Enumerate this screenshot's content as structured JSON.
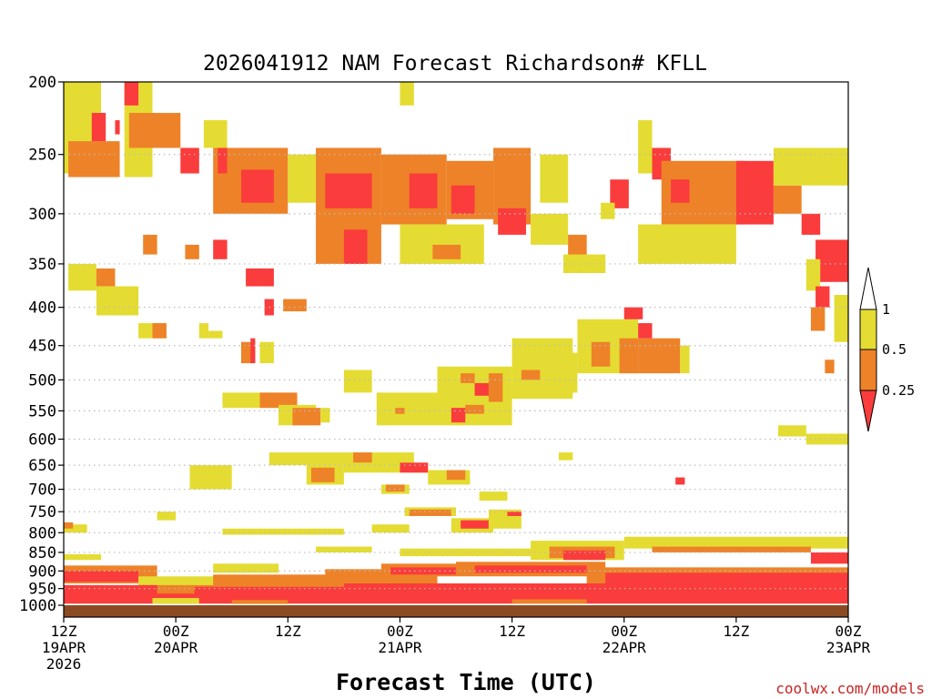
{
  "chart_data": {
    "type": "heatmap",
    "title": "2026041912 NAM Forecast Richardson# KFLL",
    "xlabel": "Forecast Time (UTC)",
    "ylabel": "",
    "credit": "coolwx.com/models",
    "x_range_hours": [
      0,
      84
    ],
    "y_range_hpa": [
      1000,
      200
    ],
    "y_ticks": [
      "200",
      "250",
      "300",
      "350",
      "400",
      "450",
      "500",
      "550",
      "600",
      "650",
      "700",
      "750",
      "800",
      "850",
      "900",
      "950",
      "1000"
    ],
    "x_ticks": [
      {
        "hour": 0,
        "line1": "12Z",
        "line2": "19APR",
        "line3": "2026"
      },
      {
        "hour": 12,
        "line1": "00Z",
        "line2": "20APR",
        "line3": ""
      },
      {
        "hour": 24,
        "line1": "12Z",
        "line2": "",
        "line3": ""
      },
      {
        "hour": 36,
        "line1": "00Z",
        "line2": "21APR",
        "line3": ""
      },
      {
        "hour": 48,
        "line1": "12Z",
        "line2": "",
        "line3": ""
      },
      {
        "hour": 60,
        "line1": "00Z",
        "line2": "22APR",
        "line3": ""
      },
      {
        "hour": 72,
        "line1": "12Z",
        "line2": "",
        "line3": ""
      },
      {
        "hour": 84,
        "line1": "00Z",
        "line2": "23APR",
        "line3": ""
      }
    ],
    "legend": {
      "placement": "right",
      "labels": [
        "1",
        "0.5",
        "0.25"
      ],
      "colors": {
        "above_1": "#ffffff",
        "r_0_5_to_1": "#e4dc32",
        "r_0_25_to_0_5": "#ee8228",
        "below_0_25": "#fa3c3c"
      }
    },
    "colors": {
      "yellow": "#e4dc32",
      "orange": "#ee8228",
      "red": "#fa3c3c",
      "ground": "#8c4a22",
      "grid": "#bbbbbb",
      "credit": "#cc2222"
    },
    "ground_level_hpa": 1000,
    "regions": [
      {
        "h0": 0.0,
        "h1": 4.0,
        "p0": 200,
        "p1": 265,
        "c": "yellow"
      },
      {
        "h0": 0.5,
        "h1": 6.0,
        "p0": 240,
        "p1": 268,
        "c": "orange"
      },
      {
        "h0": 3.0,
        "h1": 4.5,
        "p0": 220,
        "p1": 240,
        "c": "red"
      },
      {
        "h0": 6.5,
        "h1": 9.5,
        "p0": 200,
        "p1": 268,
        "c": "yellow"
      },
      {
        "h0": 7.0,
        "h1": 12.5,
        "p0": 220,
        "p1": 245,
        "c": "orange"
      },
      {
        "h0": 6.5,
        "h1": 8.0,
        "p0": 200,
        "p1": 215,
        "c": "red"
      },
      {
        "h0": 5.5,
        "h1": 6.0,
        "p0": 225,
        "p1": 235,
        "c": "red"
      },
      {
        "h0": 12.5,
        "h1": 14.5,
        "p0": 245,
        "p1": 265,
        "c": "red"
      },
      {
        "h0": 15.0,
        "h1": 17.5,
        "p0": 225,
        "p1": 245,
        "c": "yellow"
      },
      {
        "h0": 16.0,
        "h1": 24.0,
        "p0": 245,
        "p1": 300,
        "c": "orange"
      },
      {
        "h0": 19.0,
        "h1": 22.5,
        "p0": 262,
        "p1": 290,
        "c": "red"
      },
      {
        "h0": 16.5,
        "h1": 17.5,
        "p0": 245,
        "p1": 265,
        "c": "red"
      },
      {
        "h0": 24.0,
        "h1": 27.0,
        "p0": 250,
        "p1": 290,
        "c": "yellow"
      },
      {
        "h0": 27.0,
        "h1": 34.0,
        "p0": 245,
        "p1": 350,
        "c": "orange"
      },
      {
        "h0": 28.0,
        "h1": 33.0,
        "p0": 265,
        "p1": 295,
        "c": "red"
      },
      {
        "h0": 30.0,
        "h1": 32.5,
        "p0": 315,
        "p1": 350,
        "c": "red"
      },
      {
        "h0": 34.0,
        "h1": 41.0,
        "p0": 250,
        "p1": 310,
        "c": "orange"
      },
      {
        "h0": 37.0,
        "h1": 40.0,
        "p0": 265,
        "p1": 295,
        "c": "red"
      },
      {
        "h0": 41.0,
        "h1": 46.0,
        "p0": 255,
        "p1": 305,
        "c": "orange"
      },
      {
        "h0": 41.5,
        "h1": 44.0,
        "p0": 275,
        "p1": 300,
        "c": "red"
      },
      {
        "h0": 36.0,
        "h1": 45.0,
        "p0": 310,
        "p1": 350,
        "c": "yellow"
      },
      {
        "h0": 46.0,
        "h1": 50.0,
        "p0": 245,
        "p1": 310,
        "c": "orange"
      },
      {
        "h0": 46.5,
        "h1": 49.5,
        "p0": 295,
        "p1": 320,
        "c": "red"
      },
      {
        "h0": 50.0,
        "h1": 54.0,
        "p0": 300,
        "p1": 330,
        "c": "yellow"
      },
      {
        "h0": 51.0,
        "h1": 54.0,
        "p0": 250,
        "p1": 290,
        "c": "yellow"
      },
      {
        "h0": 39.5,
        "h1": 42.5,
        "p0": 330,
        "p1": 345,
        "c": "orange"
      },
      {
        "h0": 54.0,
        "h1": 56.0,
        "p0": 320,
        "p1": 345,
        "c": "orange"
      },
      {
        "h0": 53.5,
        "h1": 58.0,
        "p0": 340,
        "p1": 360,
        "c": "yellow"
      },
      {
        "h0": 36.0,
        "h1": 37.5,
        "p0": 200,
        "p1": 215,
        "c": "yellow"
      },
      {
        "h0": 61.5,
        "h1": 63.0,
        "p0": 225,
        "p1": 265,
        "c": "yellow"
      },
      {
        "h0": 63.0,
        "h1": 65.0,
        "p0": 245,
        "p1": 270,
        "c": "red"
      },
      {
        "h0": 64.0,
        "h1": 73.0,
        "p0": 255,
        "p1": 310,
        "c": "orange"
      },
      {
        "h0": 65.0,
        "h1": 67.0,
        "p0": 270,
        "p1": 290,
        "c": "red"
      },
      {
        "h0": 72.0,
        "h1": 76.0,
        "p0": 255,
        "p1": 310,
        "c": "red"
      },
      {
        "h0": 76.0,
        "h1": 79.0,
        "p0": 275,
        "p1": 300,
        "c": "orange"
      },
      {
        "h0": 79.0,
        "h1": 81.0,
        "p0": 300,
        "p1": 320,
        "c": "red"
      },
      {
        "h0": 76.0,
        "h1": 84.0,
        "p0": 245,
        "p1": 275,
        "c": "yellow"
      },
      {
        "h0": 61.5,
        "h1": 72.0,
        "p0": 310,
        "p1": 350,
        "c": "yellow"
      },
      {
        "h0": 80.5,
        "h1": 84.0,
        "p0": 325,
        "p1": 370,
        "c": "red"
      },
      {
        "h0": 79.5,
        "h1": 81.0,
        "p0": 345,
        "p1": 380,
        "c": "yellow"
      },
      {
        "h0": 58.5,
        "h1": 60.5,
        "p0": 270,
        "p1": 295,
        "c": "red"
      },
      {
        "h0": 57.5,
        "h1": 59.0,
        "p0": 290,
        "p1": 305,
        "c": "yellow"
      },
      {
        "h0": 0.5,
        "h1": 3.5,
        "p0": 350,
        "p1": 380,
        "c": "yellow"
      },
      {
        "h0": 3.5,
        "h1": 5.5,
        "p0": 355,
        "p1": 375,
        "c": "orange"
      },
      {
        "h0": 3.5,
        "h1": 8.0,
        "p0": 375,
        "p1": 410,
        "c": "yellow"
      },
      {
        "h0": 8.0,
        "h1": 11.0,
        "p0": 420,
        "p1": 440,
        "c": "yellow"
      },
      {
        "h0": 9.5,
        "h1": 11.0,
        "p0": 420,
        "p1": 440,
        "c": "orange"
      },
      {
        "h0": 8.5,
        "h1": 10.0,
        "p0": 320,
        "p1": 340,
        "c": "orange"
      },
      {
        "h0": 13.0,
        "h1": 14.5,
        "p0": 330,
        "p1": 345,
        "c": "orange"
      },
      {
        "h0": 16.0,
        "h1": 17.5,
        "p0": 325,
        "p1": 345,
        "c": "red"
      },
      {
        "h0": 19.5,
        "h1": 22.5,
        "p0": 355,
        "p1": 375,
        "c": "red"
      },
      {
        "h0": 21.5,
        "h1": 22.5,
        "p0": 390,
        "p1": 410,
        "c": "red"
      },
      {
        "h0": 23.5,
        "h1": 26.0,
        "p0": 390,
        "p1": 405,
        "c": "orange"
      },
      {
        "h0": 14.5,
        "h1": 15.5,
        "p0": 420,
        "p1": 440,
        "c": "yellow"
      },
      {
        "h0": 19.0,
        "h1": 20.5,
        "p0": 445,
        "p1": 475,
        "c": "orange"
      },
      {
        "h0": 20.0,
        "h1": 20.5,
        "p0": 440,
        "p1": 475,
        "c": "red"
      },
      {
        "h0": 21.0,
        "h1": 22.5,
        "p0": 445,
        "p1": 475,
        "c": "yellow"
      },
      {
        "h0": 17.0,
        "h1": 23.0,
        "p0": 520,
        "p1": 545,
        "c": "yellow"
      },
      {
        "h0": 21.0,
        "h1": 25.0,
        "p0": 520,
        "p1": 545,
        "c": "orange"
      },
      {
        "h0": 23.0,
        "h1": 27.0,
        "p0": 540,
        "p1": 575,
        "c": "yellow"
      },
      {
        "h0": 24.5,
        "h1": 27.5,
        "p0": 545,
        "p1": 575,
        "c": "orange"
      },
      {
        "h0": 27.5,
        "h1": 28.5,
        "p0": 545,
        "p1": 570,
        "c": "yellow"
      },
      {
        "h0": 30.0,
        "h1": 33.0,
        "p0": 485,
        "p1": 520,
        "c": "yellow"
      },
      {
        "h0": 33.5,
        "h1": 40.0,
        "p0": 520,
        "p1": 575,
        "c": "yellow"
      },
      {
        "h0": 35.5,
        "h1": 36.5,
        "p0": 545,
        "p1": 555,
        "c": "orange"
      },
      {
        "h0": 40.0,
        "h1": 48.0,
        "p0": 480,
        "p1": 575,
        "c": "yellow"
      },
      {
        "h0": 42.5,
        "h1": 44.0,
        "p0": 490,
        "p1": 505,
        "c": "orange"
      },
      {
        "h0": 44.0,
        "h1": 45.5,
        "p0": 505,
        "p1": 525,
        "c": "red"
      },
      {
        "h0": 45.5,
        "h1": 47.0,
        "p0": 490,
        "p1": 535,
        "c": "orange"
      },
      {
        "h0": 43.0,
        "h1": 45.0,
        "p0": 540,
        "p1": 555,
        "c": "orange"
      },
      {
        "h0": 41.5,
        "h1": 43.0,
        "p0": 545,
        "p1": 570,
        "c": "red"
      },
      {
        "h0": 48.0,
        "h1": 54.5,
        "p0": 440,
        "p1": 530,
        "c": "yellow"
      },
      {
        "h0": 49.0,
        "h1": 51.0,
        "p0": 485,
        "p1": 500,
        "c": "orange"
      },
      {
        "h0": 54.0,
        "h1": 55.0,
        "p0": 460,
        "p1": 520,
        "c": "yellow"
      },
      {
        "h0": 55.0,
        "h1": 61.5,
        "p0": 415,
        "p1": 490,
        "c": "yellow"
      },
      {
        "h0": 56.5,
        "h1": 58.5,
        "p0": 445,
        "p1": 480,
        "c": "orange"
      },
      {
        "h0": 59.5,
        "h1": 61.5,
        "p0": 440,
        "p1": 490,
        "c": "orange"
      },
      {
        "h0": 60.0,
        "h1": 62.0,
        "p0": 400,
        "p1": 415,
        "c": "red"
      },
      {
        "h0": 61.5,
        "h1": 66.0,
        "p0": 440,
        "p1": 490,
        "c": "orange"
      },
      {
        "h0": 66.0,
        "h1": 67.0,
        "p0": 450,
        "p1": 490,
        "c": "yellow"
      },
      {
        "h0": 61.5,
        "h1": 63.0,
        "p0": 420,
        "p1": 440,
        "c": "red"
      },
      {
        "h0": 15.5,
        "h1": 17.0,
        "p0": 430,
        "p1": 440,
        "c": "yellow"
      },
      {
        "h0": 80.0,
        "h1": 81.5,
        "p0": 400,
        "p1": 430,
        "c": "orange"
      },
      {
        "h0": 80.5,
        "h1": 82.0,
        "p0": 375,
        "p1": 400,
        "c": "red"
      },
      {
        "h0": 82.5,
        "h1": 84.0,
        "p0": 385,
        "p1": 445,
        "c": "yellow"
      },
      {
        "h0": 81.5,
        "h1": 82.5,
        "p0": 470,
        "p1": 490,
        "c": "orange"
      },
      {
        "h0": 76.5,
        "h1": 79.5,
        "p0": 575,
        "p1": 595,
        "c": "yellow"
      },
      {
        "h0": 79.5,
        "h1": 84.0,
        "p0": 590,
        "p1": 610,
        "c": "yellow"
      },
      {
        "h0": 13.5,
        "h1": 18.0,
        "p0": 650,
        "p1": 700,
        "c": "yellow"
      },
      {
        "h0": 22.0,
        "h1": 37.5,
        "p0": 625,
        "p1": 650,
        "c": "yellow"
      },
      {
        "h0": 31.0,
        "h1": 33.0,
        "p0": 625,
        "p1": 645,
        "c": "orange"
      },
      {
        "h0": 26.0,
        "h1": 30.0,
        "p0": 650,
        "p1": 690,
        "c": "yellow"
      },
      {
        "h0": 26.5,
        "h1": 29.0,
        "p0": 655,
        "p1": 685,
        "c": "orange"
      },
      {
        "h0": 30.0,
        "h1": 39.0,
        "p0": 645,
        "p1": 665,
        "c": "yellow"
      },
      {
        "h0": 36.0,
        "h1": 39.0,
        "p0": 645,
        "p1": 665,
        "c": "red"
      },
      {
        "h0": 39.0,
        "h1": 43.5,
        "p0": 660,
        "p1": 690,
        "c": "yellow"
      },
      {
        "h0": 41.0,
        "h1": 43.0,
        "p0": 660,
        "p1": 680,
        "c": "orange"
      },
      {
        "h0": 34.0,
        "h1": 37.0,
        "p0": 690,
        "p1": 710,
        "c": "yellow"
      },
      {
        "h0": 34.5,
        "h1": 36.5,
        "p0": 690,
        "p1": 705,
        "c": "orange"
      },
      {
        "h0": 53.0,
        "h1": 54.5,
        "p0": 625,
        "p1": 640,
        "c": "yellow"
      },
      {
        "h0": 65.5,
        "h1": 66.5,
        "p0": 675,
        "p1": 690,
        "c": "red"
      },
      {
        "h0": 44.5,
        "h1": 47.5,
        "p0": 705,
        "p1": 725,
        "c": "yellow"
      },
      {
        "h0": 36.5,
        "h1": 42.0,
        "p0": 740,
        "p1": 760,
        "c": "yellow"
      },
      {
        "h0": 37.0,
        "h1": 41.5,
        "p0": 745,
        "p1": 760,
        "c": "orange"
      },
      {
        "h0": 41.5,
        "h1": 46.0,
        "p0": 765,
        "p1": 800,
        "c": "yellow"
      },
      {
        "h0": 42.5,
        "h1": 45.5,
        "p0": 770,
        "p1": 790,
        "c": "red"
      },
      {
        "h0": 45.5,
        "h1": 49.0,
        "p0": 745,
        "p1": 790,
        "c": "yellow"
      },
      {
        "h0": 47.5,
        "h1": 49.0,
        "p0": 750,
        "p1": 760,
        "c": "red"
      },
      {
        "h0": 33.0,
        "h1": 37.0,
        "p0": 780,
        "p1": 800,
        "c": "yellow"
      },
      {
        "h0": 17.0,
        "h1": 30.0,
        "p0": 790,
        "p1": 805,
        "c": "yellow"
      },
      {
        "h0": 10.0,
        "h1": 12.0,
        "p0": 750,
        "p1": 770,
        "c": "yellow"
      },
      {
        "h0": 0.0,
        "h1": 2.5,
        "p0": 780,
        "p1": 800,
        "c": "yellow"
      },
      {
        "h0": 0.0,
        "h1": 1.0,
        "p0": 775,
        "p1": 790,
        "c": "orange"
      },
      {
        "h0": 27.0,
        "h1": 33.0,
        "p0": 835,
        "p1": 850,
        "c": "yellow"
      },
      {
        "h0": 36.0,
        "h1": 50.0,
        "p0": 840,
        "p1": 860,
        "c": "yellow"
      },
      {
        "h0": 50.0,
        "h1": 60.0,
        "p0": 820,
        "p1": 870,
        "c": "yellow"
      },
      {
        "h0": 52.0,
        "h1": 59.0,
        "p0": 835,
        "p1": 865,
        "c": "orange"
      },
      {
        "h0": 53.5,
        "h1": 58.0,
        "p0": 845,
        "p1": 870,
        "c": "red"
      },
      {
        "h0": 60.0,
        "h1": 84.0,
        "p0": 810,
        "p1": 840,
        "c": "yellow"
      },
      {
        "h0": 63.0,
        "h1": 80.0,
        "p0": 835,
        "p1": 850,
        "c": "orange"
      },
      {
        "h0": 80.0,
        "h1": 84.0,
        "p0": 850,
        "p1": 880,
        "c": "red"
      },
      {
        "h0": 0.0,
        "h1": 4.0,
        "p0": 855,
        "p1": 870,
        "c": "yellow"
      },
      {
        "h0": 16.0,
        "h1": 23.0,
        "p0": 880,
        "p1": 905,
        "c": "yellow"
      },
      {
        "h0": 0.0,
        "h1": 10.0,
        "p0": 885,
        "p1": 935,
        "c": "orange"
      },
      {
        "h0": 0.0,
        "h1": 8.0,
        "p0": 900,
        "p1": 930,
        "c": "red"
      },
      {
        "h0": 8.0,
        "h1": 22.0,
        "p0": 915,
        "p1": 950,
        "c": "yellow"
      },
      {
        "h0": 16.0,
        "h1": 30.0,
        "p0": 910,
        "p1": 955,
        "c": "orange"
      },
      {
        "h0": 28.0,
        "h1": 40.0,
        "p0": 895,
        "p1": 935,
        "c": "orange"
      },
      {
        "h0": 34.0,
        "h1": 42.0,
        "p0": 880,
        "p1": 915,
        "c": "orange"
      },
      {
        "h0": 35.0,
        "h1": 42.0,
        "p0": 890,
        "p1": 910,
        "c": "red"
      },
      {
        "h0": 42.0,
        "h1": 58.0,
        "p0": 875,
        "p1": 915,
        "c": "orange"
      },
      {
        "h0": 44.0,
        "h1": 56.0,
        "p0": 885,
        "p1": 905,
        "c": "red"
      },
      {
        "h0": 56.0,
        "h1": 84.0,
        "p0": 890,
        "p1": 935,
        "c": "orange"
      },
      {
        "h0": 58.0,
        "h1": 84.0,
        "p0": 905,
        "p1": 935,
        "c": "red"
      },
      {
        "h0": 0.0,
        "h1": 84.0,
        "p0": 940,
        "p1": 985,
        "c": "orange"
      },
      {
        "h0": 0.0,
        "h1": 10.0,
        "p0": 940,
        "p1": 975,
        "c": "red"
      },
      {
        "h0": 14.0,
        "h1": 30.0,
        "p0": 945,
        "p1": 980,
        "c": "red"
      },
      {
        "h0": 30.0,
        "h1": 84.0,
        "p0": 935,
        "p1": 980,
        "c": "red"
      },
      {
        "h0": 0.0,
        "h1": 84.0,
        "p0": 965,
        "p1": 995,
        "c": "red"
      },
      {
        "h0": 9.5,
        "h1": 14.5,
        "p0": 978,
        "p1": 995,
        "c": "yellow"
      },
      {
        "h0": 18.0,
        "h1": 24.0,
        "p0": 984,
        "p1": 996,
        "c": "orange"
      },
      {
        "h0": 48.0,
        "h1": 56.0,
        "p0": 982,
        "p1": 995,
        "c": "orange"
      }
    ]
  }
}
